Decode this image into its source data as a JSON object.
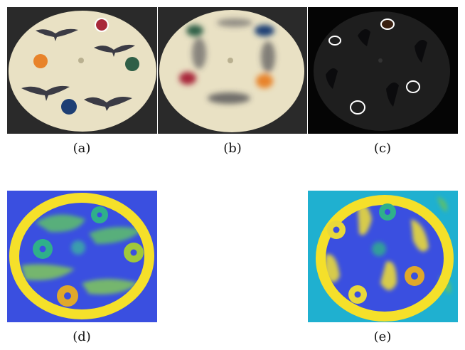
{
  "figure": {
    "panels": [
      {
        "label": "(a)",
        "content": "photo of disk with birds and colored dots"
      },
      {
        "label": "(b)",
        "content": "motion-blurred disk"
      },
      {
        "label": "(c)",
        "content": "event frame with detected dot outlines"
      },
      {
        "label": "(d)",
        "content": "heatmap"
      },
      {
        "label": "(e)",
        "content": "heatmap"
      }
    ],
    "colors": {
      "disk": "#e9e1c4",
      "background_dark": "#1e1e1e",
      "dot_red": "#a8283a",
      "dot_orange": "#e8832a",
      "dot_green": "#2f5f47",
      "dot_blue": "#1e3f74",
      "heat_low": "#3a4fe0",
      "heat_mid": "#2fb08a",
      "heat_high": "#f5e02a"
    }
  }
}
